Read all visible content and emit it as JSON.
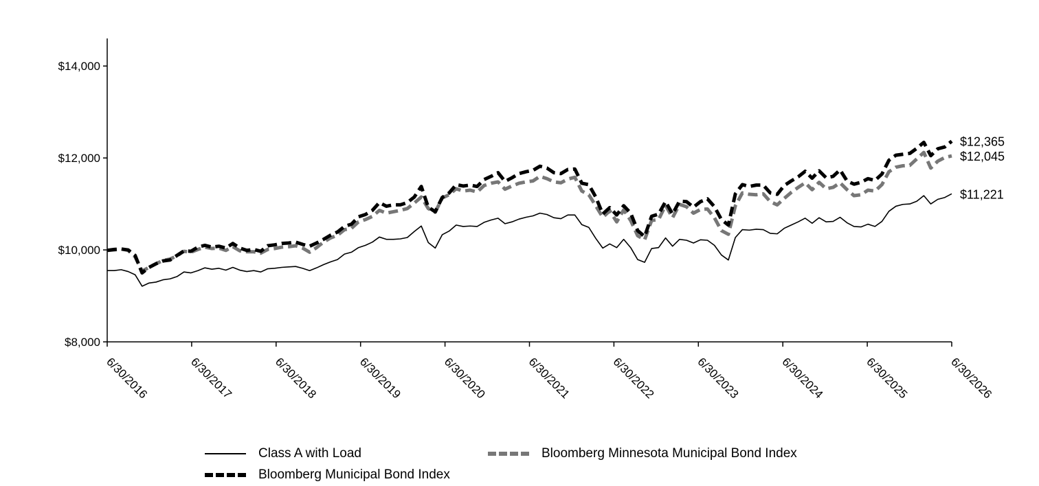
{
  "chart_data": {
    "type": "line",
    "x_ticks": [
      "6/30/2016",
      "6/30/2017",
      "6/30/2018",
      "6/30/2019",
      "6/30/2020",
      "6/30/2021",
      "6/30/2022",
      "6/30/2023",
      "6/30/2024",
      "6/30/2025",
      "6/30/2026"
    ],
    "y_ticks": [
      "$8,000",
      "$10,000",
      "$12,000",
      "$14,000"
    ],
    "ylim": [
      8000,
      14600
    ],
    "x_start": "2016-06-30",
    "grid": false,
    "legend_position": "bottom",
    "series": [
      {
        "name": "Class A with Load",
        "color": "#000000",
        "style": "solid",
        "end_label": "$11,221",
        "values": [
          9550,
          9550,
          9570,
          9530,
          9460,
          9210,
          9280,
          9300,
          9350,
          9370,
          9420,
          9520,
          9500,
          9550,
          9610,
          9580,
          9600,
          9560,
          9620,
          9560,
          9530,
          9550,
          9520,
          9590,
          9600,
          9620,
          9630,
          9640,
          9600,
          9550,
          9610,
          9680,
          9740,
          9790,
          9910,
          9950,
          10050,
          10100,
          10170,
          10280,
          10230,
          10230,
          10240,
          10270,
          10400,
          10520,
          10160,
          10040,
          10330,
          10410,
          10540,
          10510,
          10520,
          10510,
          10600,
          10650,
          10690,
          10570,
          10610,
          10670,
          10710,
          10740,
          10800,
          10770,
          10700,
          10680,
          10760,
          10760,
          10550,
          10490,
          10250,
          10040,
          10130,
          10050,
          10230,
          10050,
          9790,
          9730,
          10030,
          10050,
          10260,
          10080,
          10230,
          10210,
          10150,
          10220,
          10210,
          10100,
          9890,
          9780,
          10270,
          10440,
          10430,
          10450,
          10440,
          10360,
          10350,
          10470,
          10540,
          10610,
          10690,
          10580,
          10700,
          10610,
          10620,
          10710,
          10590,
          10510,
          10500,
          10560,
          10510,
          10620,
          10840,
          10950,
          10990,
          11000,
          11060,
          11180,
          11000,
          11100,
          11140,
          11221
        ]
      },
      {
        "name": "Bloomberg Minnesota Municipal Bond Index",
        "color": "#777777",
        "style": "dashed",
        "end_label": "$12,045",
        "values": [
          9990,
          10000,
          10020,
          9990,
          9850,
          9540,
          9620,
          9700,
          9770,
          9800,
          9870,
          9970,
          9950,
          10010,
          10060,
          10030,
          10040,
          9990,
          10070,
          9980,
          9960,
          9960,
          9930,
          10010,
          10030,
          10060,
          10070,
          10090,
          10040,
          9950,
          10050,
          10170,
          10260,
          10320,
          10440,
          10470,
          10610,
          10660,
          10730,
          10860,
          10800,
          10830,
          10860,
          10900,
          11020,
          11150,
          10900,
          10820,
          11130,
          11200,
          11330,
          11280,
          11300,
          11260,
          11400,
          11450,
          11480,
          11320,
          11390,
          11450,
          11480,
          11500,
          11600,
          11550,
          11480,
          11460,
          11540,
          11580,
          11280,
          11200,
          10960,
          10710,
          10850,
          10610,
          10870,
          10640,
          10310,
          10220,
          10640,
          10660,
          10970,
          10700,
          10990,
          10940,
          10800,
          10880,
          10890,
          10700,
          10420,
          10340,
          10960,
          11240,
          11210,
          11200,
          11220,
          11050,
          10980,
          11120,
          11250,
          11360,
          11460,
          11310,
          11470,
          11330,
          11360,
          11460,
          11310,
          11180,
          11200,
          11300,
          11280,
          11420,
          11700,
          11800,
          11830,
          11840,
          11980,
          12120,
          11780,
          11930,
          12010,
          12045
        ]
      },
      {
        "name": "Bloomberg Municipal Bond Index",
        "color": "#000000",
        "style": "dashed",
        "end_label": "$12,365",
        "values": [
          9990,
          10010,
          10020,
          10000,
          9880,
          9500,
          9620,
          9700,
          9760,
          9780,
          9880,
          9980,
          9970,
          10060,
          10100,
          10060,
          10080,
          10040,
          10140,
          10040,
          9990,
          10010,
          9970,
          10090,
          10110,
          10140,
          10150,
          10170,
          10120,
          10080,
          10150,
          10230,
          10320,
          10390,
          10510,
          10560,
          10720,
          10770,
          10860,
          11030,
          10950,
          10980,
          10980,
          11030,
          11150,
          11380,
          10930,
          10830,
          11140,
          11240,
          11420,
          11390,
          11410,
          11380,
          11530,
          11600,
          11680,
          11490,
          11570,
          11660,
          11700,
          11730,
          11820,
          11780,
          11680,
          11660,
          11750,
          11760,
          11450,
          11420,
          11150,
          10780,
          10920,
          10760,
          10960,
          10800,
          10420,
          10290,
          10730,
          10780,
          11050,
          10780,
          11060,
          11050,
          10930,
          11050,
          11110,
          10940,
          10660,
          10540,
          11220,
          11420,
          11380,
          11410,
          11410,
          11240,
          11210,
          11400,
          11500,
          11590,
          11710,
          11560,
          11720,
          11570,
          11600,
          11740,
          11500,
          11430,
          11470,
          11550,
          11510,
          11650,
          11950,
          12060,
          12080,
          12100,
          12210,
          12340,
          12050,
          12200,
          12240,
          12365
        ]
      }
    ]
  }
}
